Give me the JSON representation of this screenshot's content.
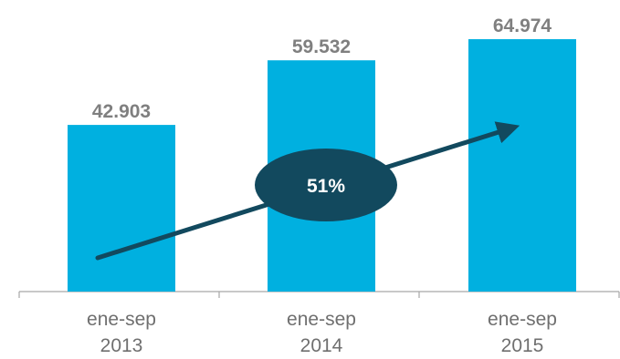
{
  "chart_data": {
    "type": "bar",
    "categories": [
      [
        "ene-sep",
        "2013"
      ],
      [
        "ene-sep",
        "2014"
      ],
      [
        "ene-sep",
        "2015"
      ]
    ],
    "values": [
      42903,
      59532,
      64974
    ],
    "value_labels": [
      "42.903",
      "59.532",
      "64.974"
    ],
    "ylim": [
      0,
      73000
    ],
    "grid": false,
    "bar_color": "#00b0e0",
    "annotation": {
      "text": "51%",
      "type": "growth-arrow",
      "color": "#12495e"
    }
  }
}
